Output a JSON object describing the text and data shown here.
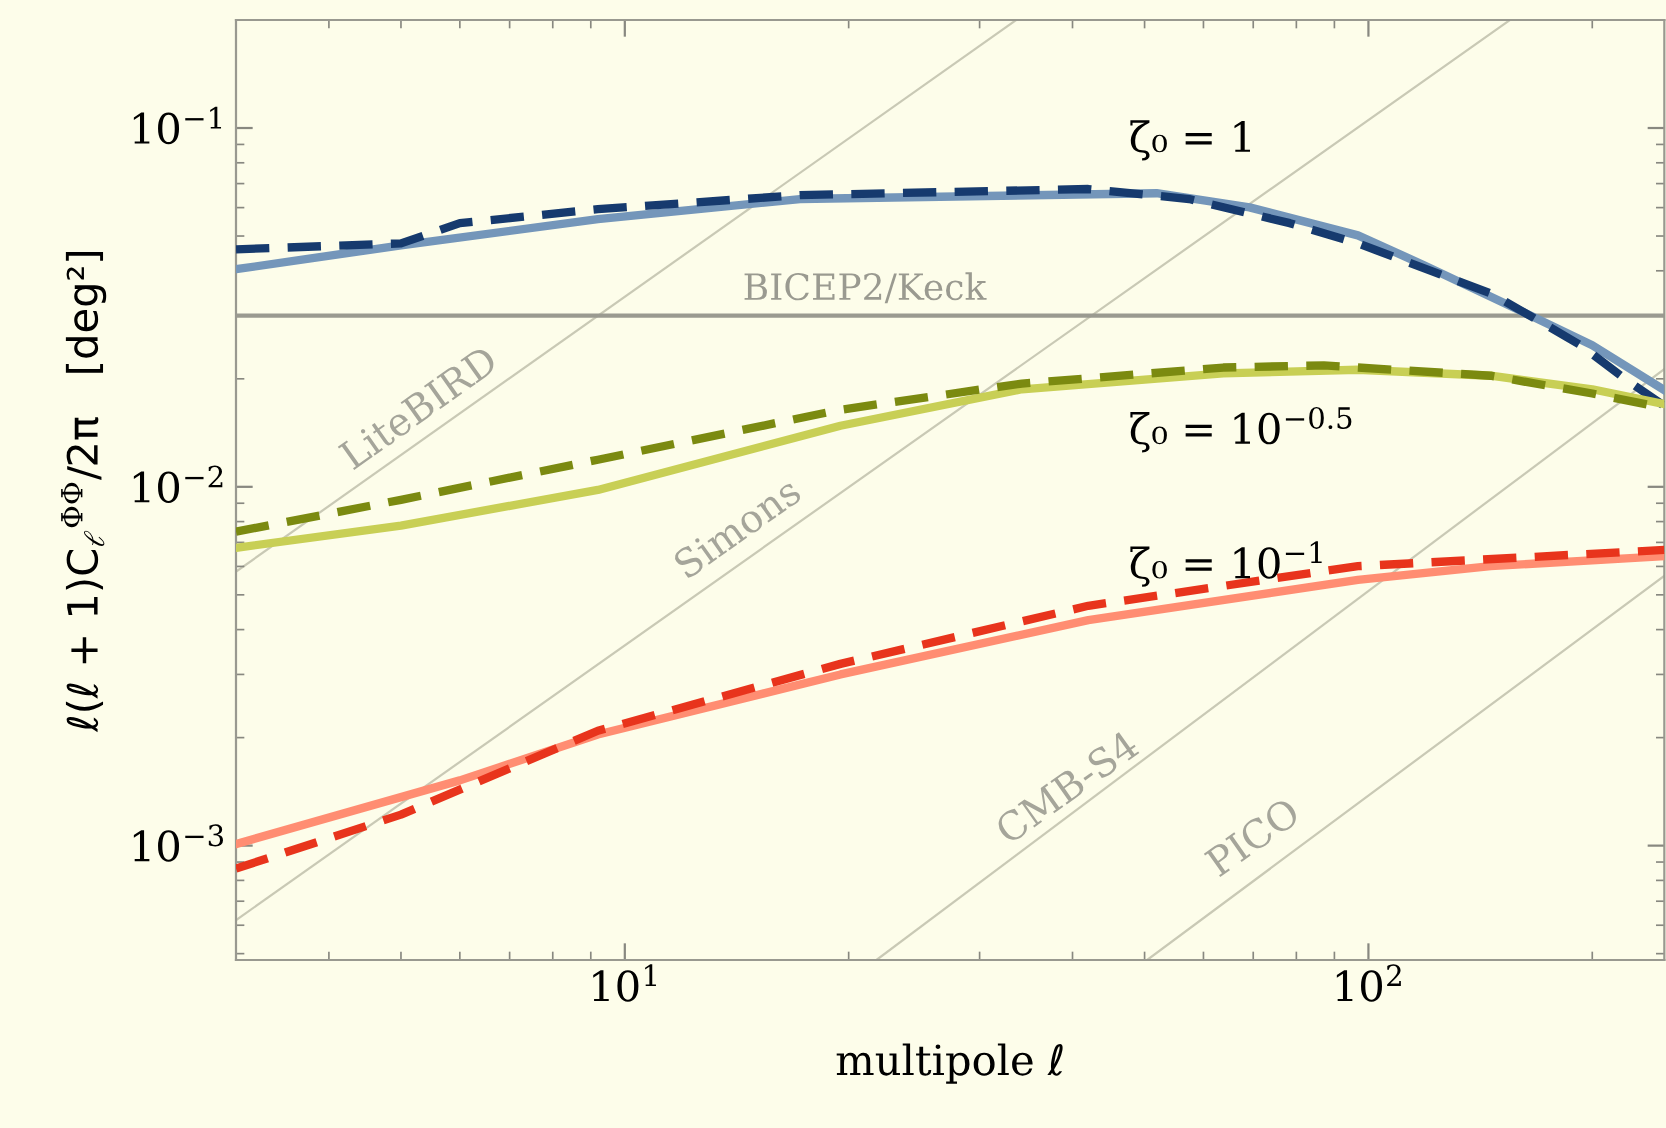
{
  "chart_data": {
    "type": "line",
    "xlabel": "multipole ℓ",
    "ylabel": "ℓ(ℓ + 1)C$_{ℓ}$$^{ΦΦ}$/2π   [deg²]",
    "log": "xy",
    "xlim": [
      3,
      250
    ],
    "ylim": [
      0.00048,
      0.2
    ],
    "xticks": [
      {
        "value": 10,
        "label": "10$^{1}$"
      },
      {
        "value": 100,
        "label": "10$^{2}$"
      }
    ],
    "yticks": [
      {
        "value": 0.001,
        "label": "10$^{−3}$"
      },
      {
        "value": 0.01,
        "label": "10$^{−2}$"
      },
      {
        "value": 0.1,
        "label": "10$^{−1}$"
      }
    ],
    "grid": false,
    "series": [
      {
        "color": "#c9c9b5",
        "line_style": "solid",
        "x": [
          3,
          33.6
        ],
        "values": [
          0.0058,
          0.2
        ]
      },
      {
        "color": "#c9c9b5",
        "line_style": "solid",
        "x": [
          3,
          155
        ],
        "values": [
          0.00062,
          0.2
        ]
      },
      {
        "color": "#c9c9b5",
        "line_style": "solid",
        "x": [
          21.8,
          250
        ],
        "values": [
          0.00048,
          0.0213
        ]
      },
      {
        "color": "#c9c9b5",
        "line_style": "solid",
        "x": [
          50.4,
          250
        ],
        "values": [
          0.00048,
          0.00565
        ]
      },
      {
        "color": "#7496ba",
        "line_style": "solid",
        "x": [
          3,
          5,
          9.2,
          17.2,
          51.9,
          69.2,
          96.8,
          119,
          163,
          200,
          250
        ],
        "values": [
          0.0404,
          0.0471,
          0.0557,
          0.0634,
          0.0658,
          0.0601,
          0.0502,
          0.0414,
          0.0304,
          0.0248,
          0.0186
        ]
      },
      {
        "color": "#163a6e",
        "line_style": "dashed",
        "x": [
          3,
          5,
          6,
          9.2,
          17.2,
          42,
          57.4,
          78.4,
          96.8,
          146,
          163,
          193,
          222,
          250
        ],
        "values": [
          0.0459,
          0.0477,
          0.0543,
          0.0594,
          0.065,
          0.0676,
          0.0634,
          0.0543,
          0.0477,
          0.0346,
          0.0304,
          0.0248,
          0.0199,
          0.0168
        ]
      },
      {
        "color": "#c8cf55",
        "line_style": "solid",
        "x": [
          3,
          5,
          9.2,
          19.5,
          34.2,
          63.8,
          96.8,
          146,
          200,
          250
        ],
        "values": [
          0.00676,
          0.0078,
          0.0098,
          0.0148,
          0.0187,
          0.0207,
          0.0212,
          0.0204,
          0.0187,
          0.017
        ]
      },
      {
        "color": "#7b8a10",
        "line_style": "dashed",
        "x": [
          3,
          5,
          9.2,
          19.5,
          34.2,
          63.8,
          87.1,
          146,
          200,
          250
        ],
        "values": [
          0.0075,
          0.0092,
          0.0119,
          0.0164,
          0.0194,
          0.0215,
          0.0218,
          0.0204,
          0.0182,
          0.0166
        ]
      },
      {
        "color": "#ff8d72",
        "line_style": "solid",
        "x": [
          3,
          6,
          9.2,
          19.5,
          42,
          96.8,
          146,
          250
        ],
        "values": [
          0.00101,
          0.00152,
          0.00204,
          0.003,
          0.00425,
          0.0055,
          0.00601,
          0.00641
        ]
      },
      {
        "color": "#e8341c",
        "line_style": "dashed",
        "x": [
          3,
          5,
          9.2,
          19.5,
          42,
          96.8,
          250
        ],
        "values": [
          0.000863,
          0.00122,
          0.00209,
          0.00321,
          0.00466,
          0.00601,
          0.00667
        ]
      }
    ],
    "ref_lines": [
      {
        "axis": "y",
        "value": 0.03,
        "label": "BICEP2/Keck",
        "color": "#9a9a90"
      }
    ],
    "annotations": [
      "ζ₀ = 1",
      "ζ₀ = 10$^{−0.5}$",
      "ζ₀ = 10$^{−1}$",
      "LiteBIRD",
      "Simons",
      "CMB-S4",
      "PICO"
    ]
  }
}
